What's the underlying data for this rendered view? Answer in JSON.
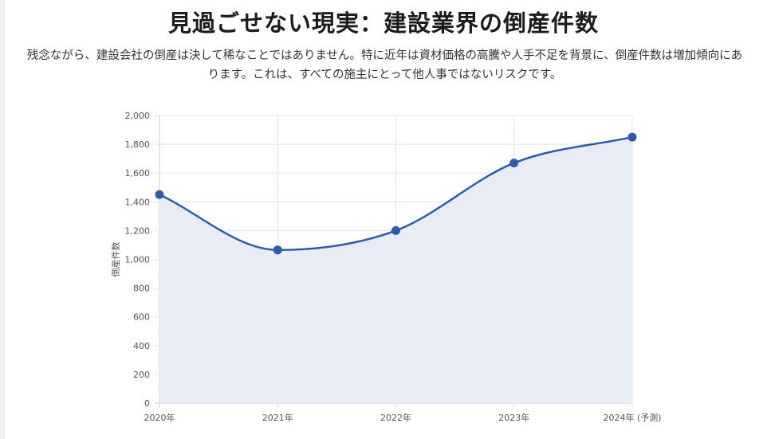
{
  "page": {
    "title": "見過ごせない現実：建設業界の倒産件数",
    "description": "残念ながら、建設会社の倒産は決して稀なことではありません。特に近年は資材価格の高騰や人手不足を背景に、倒産件数は増加傾向にあります。これは、すべての施主にとって他人事ではないリスクです。"
  },
  "chart_data": {
    "type": "area",
    "categories": [
      "2020年",
      "2021年",
      "2022年",
      "2023年",
      "2024年 (予測)"
    ],
    "series": [
      {
        "values": [
          1450,
          1065,
          1200,
          1670,
          1850
        ]
      }
    ],
    "ylabel": "倒産件数",
    "xlabel": "",
    "ylim": [
      0,
      2000
    ],
    "yticks": [
      0,
      200,
      400,
      600,
      800,
      1000,
      1200,
      1400,
      1600,
      1800,
      2000
    ],
    "grid": true,
    "legend": "none",
    "colors": {
      "line": "#2f5ca8",
      "fill": "#e8edf5",
      "grid": "#e3e3e3",
      "axis": "#cccccc",
      "tick_text": "#555555"
    }
  }
}
